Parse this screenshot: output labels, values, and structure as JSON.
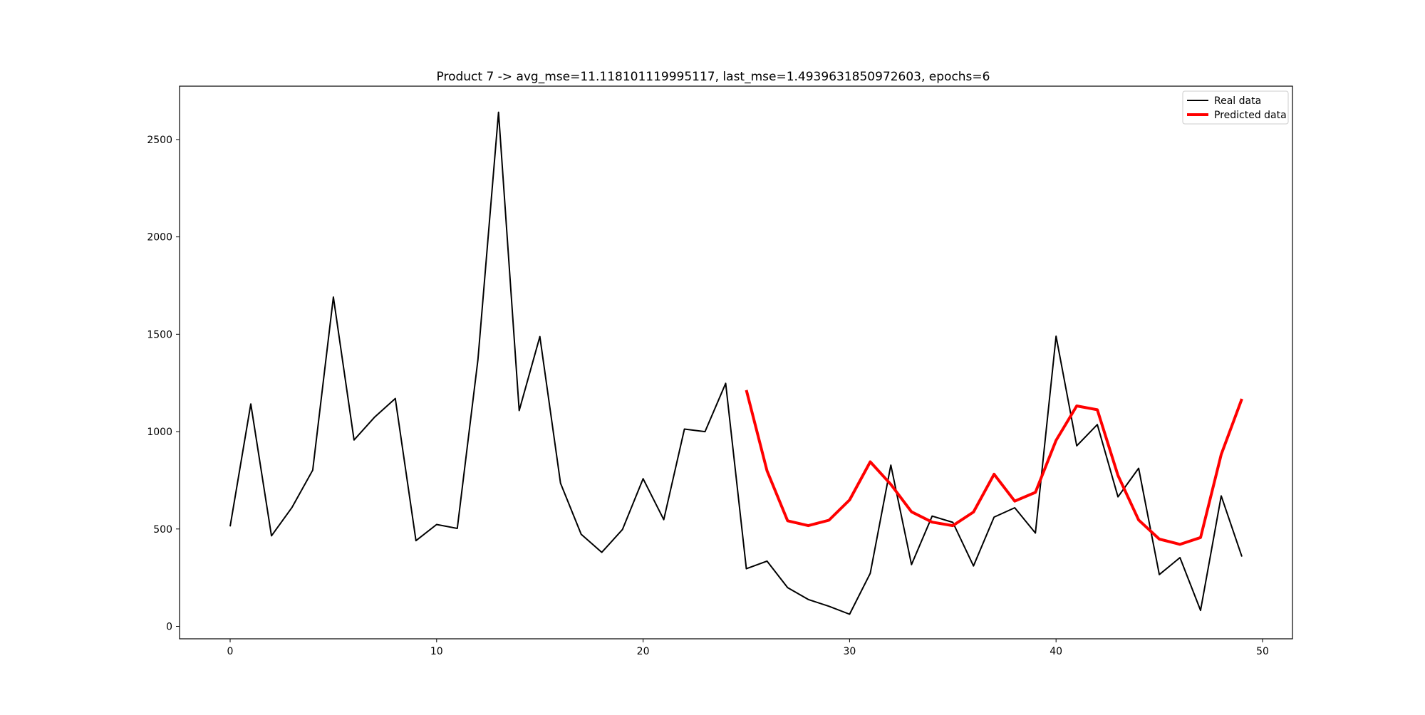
{
  "chart_data": {
    "type": "line",
    "title": "Product 7 -> avg_mse=11.118101119995117, last_mse=1.4939631850972603, epochs=6",
    "xlabel": "",
    "ylabel": "",
    "xlim": [
      -2.45,
      51.45
    ],
    "ylim": [
      -64,
      2774
    ],
    "x_ticks": [
      0,
      10,
      20,
      30,
      40,
      50
    ],
    "y_ticks": [
      0,
      500,
      1000,
      1500,
      2000,
      2500
    ],
    "grid": false,
    "legend_position": "top-right",
    "series": [
      {
        "name": "Real data",
        "color": "#000000",
        "x": [
          0,
          1,
          2,
          3,
          4,
          5,
          6,
          7,
          8,
          9,
          10,
          11,
          12,
          13,
          14,
          15,
          16,
          17,
          18,
          19,
          20,
          21,
          22,
          23,
          24,
          25,
          26,
          27,
          28,
          29,
          30,
          31,
          32,
          33,
          34,
          35,
          36,
          37,
          38,
          39,
          40,
          41,
          42,
          43,
          44,
          45,
          46,
          47,
          48,
          49
        ],
        "values": [
          513,
          1142,
          465,
          611,
          802,
          1691,
          957,
          1075,
          1170,
          440,
          523,
          503,
          1370,
          2640,
          1108,
          1488,
          735,
          473,
          380,
          497,
          758,
          548,
          1013,
          1000,
          1248,
          296,
          335,
          199,
          138,
          103,
          62,
          272,
          828,
          317,
          566,
          534,
          310,
          561,
          609,
          479,
          1490,
          927,
          1036,
          665,
          812,
          266,
          353,
          82,
          670,
          358
        ]
      },
      {
        "name": "Predicted data",
        "color": "#ff0000",
        "x": [
          25,
          26,
          27,
          28,
          29,
          30,
          31,
          32,
          33,
          34,
          35,
          36,
          37,
          38,
          39,
          40,
          41,
          42,
          43,
          44,
          45,
          46,
          47,
          48,
          49
        ],
        "values": [
          1213,
          799,
          542,
          517,
          545,
          649,
          845,
          729,
          588,
          535,
          517,
          587,
          781,
          643,
          688,
          955,
          1132,
          1112,
          775,
          546,
          448,
          421,
          456,
          883,
          1168
        ]
      }
    ]
  }
}
